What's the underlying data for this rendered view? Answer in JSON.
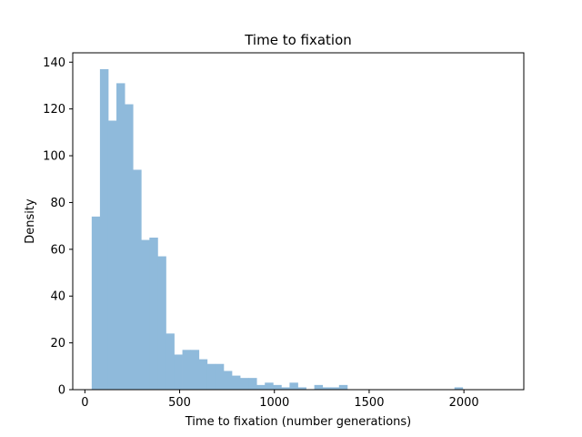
{
  "chart_data": {
    "type": "bar",
    "title": "Time to fixation",
    "xlabel": "Time to fixation (number generations)",
    "ylabel": "Density",
    "xlim": [
      -64,
      2316
    ],
    "ylim": [
      0,
      144
    ],
    "xticks": [
      0,
      500,
      1000,
      1500,
      2000
    ],
    "yticks": [
      0,
      20,
      40,
      60,
      80,
      100,
      120,
      140
    ],
    "grid": false,
    "legend": "none",
    "bar_color": "#8fbadb",
    "bin_start": 36,
    "bin_width": 43.5,
    "values": [
      74,
      137,
      115,
      131,
      122,
      94,
      64,
      65,
      57,
      24,
      15,
      17,
      17,
      13,
      11,
      11,
      8,
      6,
      5,
      5,
      2,
      3,
      2,
      1,
      3,
      1,
      0,
      2,
      1,
      1,
      2,
      0,
      0,
      0,
      0,
      0,
      0,
      0,
      0,
      0,
      0,
      0,
      0,
      0,
      1
    ]
  }
}
